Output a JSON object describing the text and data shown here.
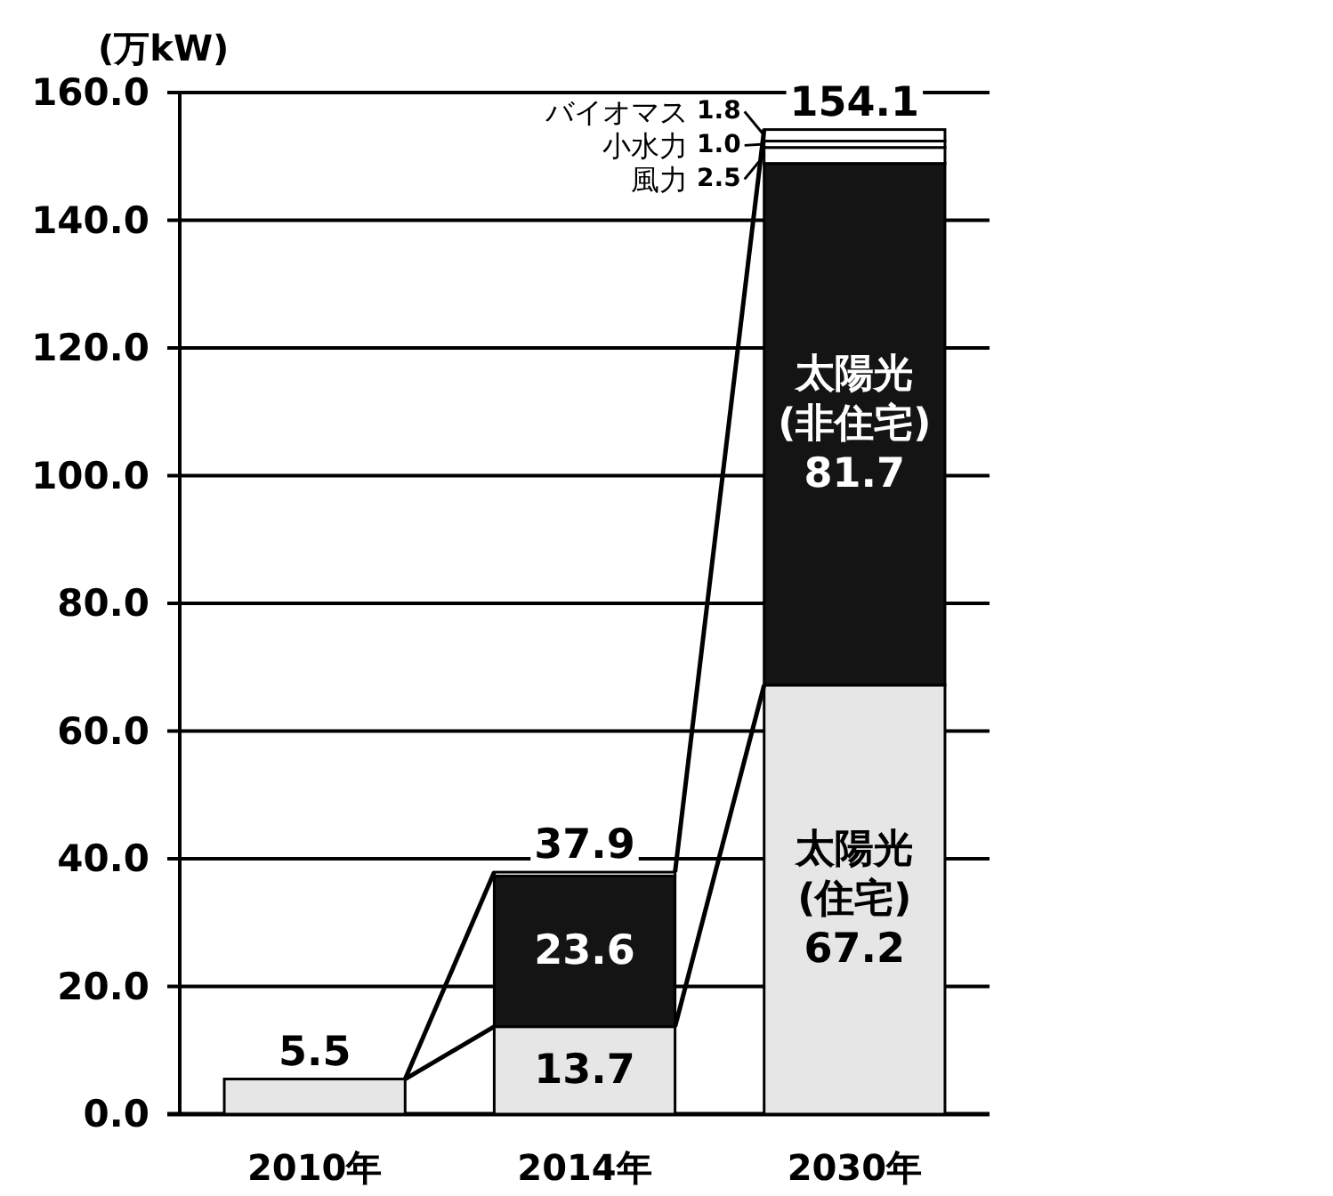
{
  "chart_data": {
    "type": "bar",
    "stacked": true,
    "ylabel": "(万kW)",
    "categories": [
      "2010年",
      "2014年",
      "2030年"
    ],
    "ylim": [
      0,
      160
    ],
    "yticks": [
      {
        "value": 0,
        "label": "0.0"
      },
      {
        "value": 20,
        "label": "20.0"
      },
      {
        "value": 40,
        "label": "40.0"
      },
      {
        "value": 60,
        "label": "60.0"
      },
      {
        "value": 80,
        "label": "80.0"
      },
      {
        "value": 100,
        "label": "100.0"
      },
      {
        "value": 120,
        "label": "120.0"
      },
      {
        "value": 140,
        "label": "140.0"
      },
      {
        "value": 160,
        "label": "160.0"
      }
    ],
    "grid": "y",
    "series": [
      {
        "name": "太陽光(住宅)",
        "color": "#e6e6e6",
        "values": [
          5.5,
          13.7,
          67.2
        ],
        "value_labels": [
          null,
          "13.7",
          "67.2"
        ]
      },
      {
        "name": "太陽光(非住宅)",
        "color": "#141414",
        "values": [
          null,
          23.6,
          81.7
        ],
        "value_labels": [
          null,
          "23.6",
          "81.7"
        ]
      },
      {
        "name": "風力",
        "color": "#ffffff",
        "values": [
          null,
          0.6,
          2.5
        ],
        "value_labels": [
          null,
          null,
          "2.5"
        ]
      },
      {
        "name": "小水力",
        "color": "#ffffff",
        "values": [
          null,
          null,
          1.0
        ],
        "value_labels": [
          null,
          null,
          "1.0"
        ]
      },
      {
        "name": "バイオマス",
        "color": "#ffffff",
        "values": [
          null,
          null,
          1.8
        ],
        "value_labels": [
          null,
          null,
          "1.8"
        ]
      }
    ],
    "totals": [
      "5.5",
      "37.9",
      "154.1"
    ]
  }
}
